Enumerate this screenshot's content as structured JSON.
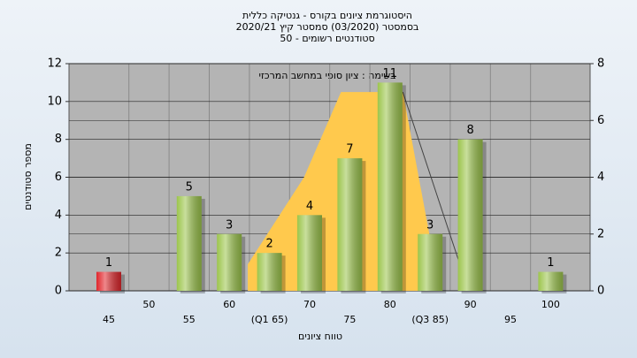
{
  "chart_data": {
    "type": "bar",
    "title": [
      "היסטוגרמת ציונים בקורס - גנטיקה כללית",
      "בסמסטר (03/2020) סמסטר קיץ 2020/21",
      "סטודנטים רשומים - 50"
    ],
    "annotation": "בשימה : ציון סופי במחשב המרכזי",
    "x_label": "טווח ציונים",
    "y_label": "מספר סטודנטים",
    "categories": [
      "45",
      "50",
      "55",
      "60",
      "(Q1 65)",
      "70",
      "75",
      "80",
      "(Q3 85)",
      "90",
      "95",
      "100"
    ],
    "values": [
      1,
      0,
      5,
      3,
      2,
      4,
      7,
      11,
      3,
      8,
      0,
      1
    ],
    "colors": [
      "#e0262b",
      "#9cc54c",
      "#9cc54c",
      "#9cc54c",
      "#9cc54c",
      "#9cc54c",
      "#9cc54c",
      "#9cc54c",
      "#9cc54c",
      "#9cc54c",
      "#9cc54c",
      "#9cc54c"
    ],
    "area": {
      "color": "#ffc94d",
      "x": [
        62.3,
        69.3,
        73.9,
        81.6,
        84.9
      ],
      "values": [
        1.4,
        6,
        10.5,
        10.5,
        3
      ]
    },
    "line": {
      "color": "#444444",
      "x": [
        81.6,
        88.7
      ],
      "values": [
        10.5,
        1.4
      ]
    },
    "ylim": [
      0,
      12
    ],
    "yticks": [
      0,
      2,
      4,
      6,
      8,
      10,
      12
    ],
    "y2lim": [
      0,
      8
    ],
    "y2ticks": [
      0,
      2,
      4,
      6,
      8
    ],
    "grid": true
  }
}
